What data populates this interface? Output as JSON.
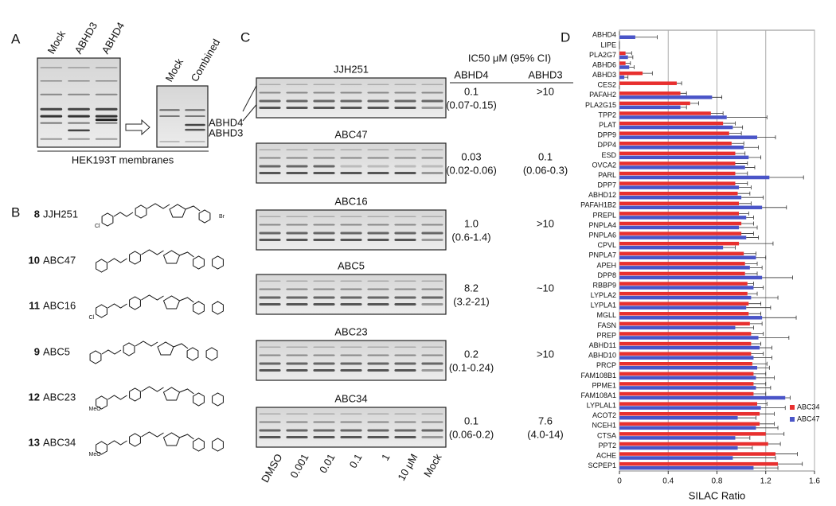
{
  "panel_a": {
    "letter": "A",
    "lanes": [
      "Mock",
      "ABHD3",
      "ABHD4"
    ],
    "lanes_right": [
      "Mock",
      "Combined"
    ],
    "band_labels": [
      "ABHD4",
      "ABHD3"
    ],
    "caption": "HEK193T membranes"
  },
  "panel_b": {
    "letter": "B",
    "compounds": [
      {
        "number": "8",
        "name": "JJH251",
        "atoms": [
          "Cl",
          "Br"
        ]
      },
      {
        "number": "10",
        "name": "ABC47",
        "atoms": []
      },
      {
        "number": "11",
        "name": "ABC16",
        "atoms": [
          "Cl"
        ]
      },
      {
        "number": "9",
        "name": "ABC5",
        "atoms": []
      },
      {
        "number": "12",
        "name": "ABC23",
        "atoms": [
          "MeO"
        ]
      },
      {
        "number": "13",
        "name": "ABC34",
        "atoms": [
          "MeO"
        ]
      }
    ]
  },
  "panel_c": {
    "letter": "C",
    "gels": [
      "JJH251",
      "ABC47",
      "ABC16",
      "ABC5",
      "ABC23",
      "ABC34"
    ],
    "lanes": [
      "DMSO",
      "0.001",
      "0.01",
      "0.1",
      "1",
      "10 μM",
      "Mock"
    ],
    "table": {
      "title": "IC50 μM (95% CI)",
      "columns": [
        "ABHD4",
        "ABHD3"
      ],
      "rows": [
        [
          [
            "0.1",
            "(0.07-0.15)"
          ],
          [
            ">10"
          ]
        ],
        [
          [
            "0.03",
            "(0.02-0.06)"
          ],
          [
            "0.1",
            "(0.06-0.3)"
          ]
        ],
        [
          [
            "1.0",
            "(0.6-1.4)"
          ],
          [
            ">10"
          ]
        ],
        [
          [
            "8.2",
            "(3.2-21)"
          ],
          [
            "~10"
          ]
        ],
        [
          [
            "0.2",
            "(0.1-0.24)"
          ],
          [
            ">10"
          ]
        ],
        [
          [
            "0.1",
            "(0.06-0.2)"
          ],
          [
            "7.6",
            "(4.0-14)"
          ]
        ]
      ]
    }
  },
  "chart_data": {
    "type": "bar",
    "orientation": "horizontal",
    "panel_label": "D",
    "xlabel": "SILAC Ratio",
    "categories": [
      "ABHD4",
      "LIPE",
      "PLA2G7",
      "ABHD6",
      "ABHD3",
      "CES2",
      "PAFAH2",
      "PLA2G15",
      "TPP2",
      "PLAT",
      "DPP9",
      "DPP4",
      "ESD",
      "OVCA2",
      "PARL",
      "DPP7",
      "ABHD12",
      "PAFAH1B2",
      "PREPL",
      "PNPLA4",
      "PNPLA6",
      "CPVL",
      "PNPLA7",
      "APEH",
      "DPP8",
      "RBBP9",
      "LYPLA2",
      "LYPLA1",
      "MGLL",
      "FASN",
      "PREP",
      "ABHD11",
      "ABHD10",
      "PRCP",
      "FAM108B1",
      "PPME1",
      "FAM108A1",
      "LYPLAL1",
      "ACOT2",
      "NCEH1",
      "CTSA",
      "PPT2",
      "ACHE",
      "SCPEP1"
    ],
    "series": [
      {
        "name": "ABC34",
        "color": "#e8302f",
        "values": [
          0,
          0,
          0.05,
          0.05,
          0.19,
          0.47,
          0.5,
          0.58,
          0.75,
          0.85,
          0.9,
          0.92,
          0.95,
          0.95,
          0.95,
          0.95,
          0.97,
          0.98,
          0.98,
          1.0,
          1.0,
          0.98,
          1.02,
          1.03,
          1.03,
          1.05,
          1.05,
          1.06,
          1.06,
          1.07,
          1.08,
          1.08,
          1.08,
          1.09,
          1.1,
          1.1,
          1.1,
          1.13,
          1.15,
          1.15,
          1.2,
          1.22,
          1.28,
          1.3
        ],
        "errors": [
          0,
          0,
          0.05,
          0.04,
          0.08,
          0.04,
          0.05,
          0.07,
          0.1,
          0.1,
          0.1,
          0.1,
          0.08,
          0.1,
          0.1,
          0.1,
          0.1,
          0.1,
          0.08,
          0.1,
          0.1,
          0.28,
          0.1,
          0.1,
          0.1,
          0.05,
          0.08,
          0.1,
          0.1,
          0.1,
          0.1,
          0.08,
          0.1,
          0.12,
          0.1,
          0.1,
          0.1,
          0.08,
          0.12,
          0.12,
          0.15,
          0.1,
          0.18,
          0.2
        ]
      },
      {
        "name": "ABC47",
        "color": "#4a55c8",
        "values": [
          0.13,
          0,
          0.07,
          0.08,
          0.04,
          0,
          0.76,
          0.5,
          0.88,
          0.93,
          1.13,
          1.02,
          1.06,
          1.03,
          1.23,
          0.98,
          1.0,
          1.17,
          1.04,
          0.98,
          1.04,
          0.85,
          1.12,
          1.07,
          1.17,
          1.1,
          1.08,
          1.04,
          1.17,
          0.95,
          1.14,
          1.15,
          1.1,
          1.13,
          1.12,
          1.12,
          1.36,
          1.16,
          0.97,
          1.12,
          0.95,
          0.97,
          0.93,
          1.1
        ],
        "errors": [
          0.18,
          0,
          0.04,
          0.04,
          0.03,
          0,
          0.08,
          0.05,
          0.33,
          0.08,
          0.15,
          0.12,
          0.1,
          0.08,
          0.28,
          0.1,
          0.18,
          0.2,
          0.06,
          0.15,
          0.1,
          0.1,
          0.08,
          0.1,
          0.25,
          0.08,
          0.22,
          0.2,
          0.28,
          0.15,
          0.25,
          0.1,
          0.15,
          0.1,
          0.15,
          0.12,
          0.04,
          0.2,
          0.15,
          0.18,
          0.12,
          0.12,
          0.35,
          0.2
        ]
      }
    ],
    "xlim": [
      0,
      1.6
    ],
    "xticks": [
      0,
      0.4,
      0.8,
      1.2,
      1.6
    ],
    "grid": true,
    "legend_position": "right"
  }
}
